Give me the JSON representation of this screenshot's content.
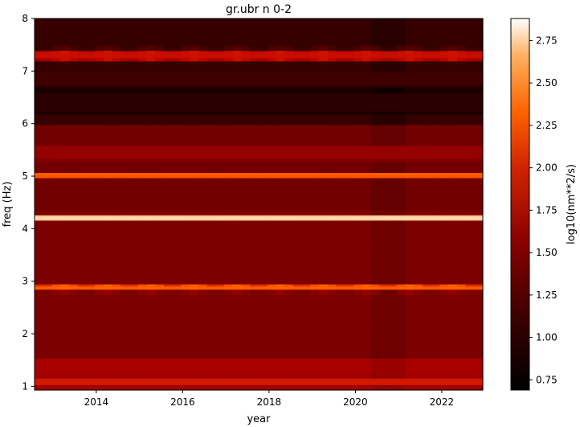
{
  "chart_data": {
    "type": "heatmap",
    "title": "gr.ubr n 0-2",
    "xlabel": "year",
    "ylabel": "freq (Hz)",
    "colorbar_label": "log10(nm**2/s)",
    "colormap": "gist_heat",
    "xlim": [
      2012.57,
      2022.95
    ],
    "ylim": [
      0.93,
      8.0
    ],
    "x_ticks": [
      2014,
      2016,
      2018,
      2020,
      2022
    ],
    "y_ticks": [
      1,
      2,
      3,
      4,
      5,
      6,
      7,
      8
    ],
    "clim": [
      0.69,
      2.88
    ],
    "colorbar_ticks": [
      "0.75",
      "1.00",
      "1.25",
      "1.50",
      "1.75",
      "2.00",
      "2.25",
      "2.50",
      "2.75"
    ],
    "background_level": 1.35,
    "spectral_bands": [
      {
        "freq": 7.3,
        "width": 0.12,
        "level": 1.85,
        "note": "seasonal modulation"
      },
      {
        "freq": 6.85,
        "width": 0.25,
        "level": 1.05
      },
      {
        "freq": 6.4,
        "width": 0.35,
        "level": 0.95
      },
      {
        "freq": 5.45,
        "width": 0.25,
        "level": 1.55
      },
      {
        "freq": 5.03,
        "width": 0.03,
        "level": 2.2
      },
      {
        "freq": 4.2,
        "width": 0.03,
        "level": 2.75
      },
      {
        "freq": 2.87,
        "width": 0.06,
        "level": 2.2,
        "note": "seasonal modulation"
      },
      {
        "freq": 1.1,
        "width": 0.1,
        "level": 1.9
      }
    ]
  }
}
